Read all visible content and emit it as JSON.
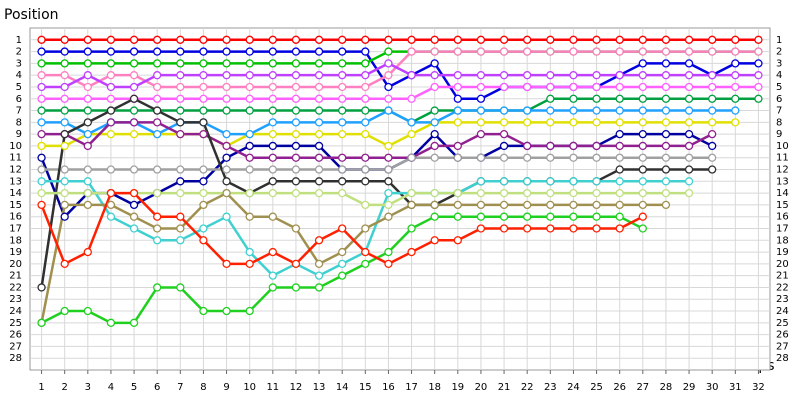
{
  "chart_data": {
    "type": "line",
    "title": "Position",
    "x_label": "Laps",
    "y_label": "Position",
    "x": [
      1,
      2,
      3,
      4,
      5,
      6,
      7,
      8,
      9,
      10,
      11,
      12,
      13,
      14,
      15,
      16,
      17,
      18,
      19,
      20,
      21,
      22,
      23,
      24,
      25,
      26,
      27,
      28,
      29,
      30,
      31,
      32
    ],
    "xlim": [
      0.5,
      32.5
    ],
    "xticks": [
      1,
      2,
      3,
      4,
      5,
      6,
      7,
      8,
      9,
      10,
      11,
      12,
      13,
      14,
      15,
      16,
      17,
      18,
      19,
      20,
      21,
      22,
      23,
      24,
      25,
      26,
      27,
      28,
      29,
      30,
      31,
      32
    ],
    "ylim": [
      29,
      0
    ],
    "yticks": [
      1,
      2,
      3,
      4,
      5,
      6,
      7,
      8,
      9,
      10,
      11,
      12,
      13,
      14,
      15,
      16,
      17,
      18,
      19,
      20,
      21,
      22,
      23,
      24,
      25,
      26,
      27,
      28
    ],
    "grid": true,
    "series": [
      {
        "color": "#ff0000",
        "values": [
          1,
          1,
          1,
          1,
          1,
          1,
          1,
          1,
          1,
          1,
          1,
          1,
          1,
          1,
          1,
          1,
          1,
          1,
          1,
          1,
          1,
          1,
          1,
          1,
          1,
          1,
          1,
          1,
          1,
          1,
          1,
          1
        ]
      },
      {
        "color": "#0000e0",
        "values": [
          2,
          2,
          2,
          2,
          2,
          2,
          2,
          2,
          2,
          2,
          2,
          2,
          2,
          2,
          2,
          5,
          4,
          3,
          6,
          6,
          5,
          5,
          5,
          5,
          5,
          4,
          3,
          3,
          3,
          4,
          3,
          3
        ]
      },
      {
        "color": "#00c000",
        "values": [
          3,
          3,
          3,
          3,
          3,
          3,
          3,
          3,
          3,
          3,
          3,
          3,
          3,
          3,
          3,
          2,
          2,
          2,
          2,
          2,
          2,
          2,
          2,
          2,
          2,
          2,
          2,
          2,
          2,
          2,
          2,
          2
        ]
      },
      {
        "color": "#ff80c0",
        "values": [
          4,
          4,
          5,
          4,
          4,
          5,
          5,
          5,
          5,
          5,
          5,
          5,
          5,
          5,
          5,
          4,
          2,
          2,
          2,
          2,
          2,
          2,
          2,
          2,
          2,
          2,
          2,
          2,
          2,
          2,
          2,
          2
        ]
      },
      {
        "color": "#c040ff",
        "values": [
          5,
          5,
          4,
          5,
          5,
          4,
          4,
          4,
          4,
          4,
          4,
          4,
          4,
          4,
          4,
          3,
          4,
          4,
          4,
          4,
          4,
          4,
          4,
          4,
          4,
          4,
          4,
          4,
          4,
          4,
          4,
          4
        ]
      },
      {
        "color": "#ff60ff",
        "values": [
          6,
          6,
          6,
          6,
          6,
          6,
          6,
          6,
          6,
          6,
          6,
          6,
          6,
          6,
          6,
          6,
          6,
          5,
          5,
          5,
          5,
          5,
          5,
          5,
          5,
          5,
          5,
          5,
          5,
          5,
          5,
          5
        ]
      },
      {
        "color": "#00a040",
        "values": [
          7,
          7,
          7,
          7,
          7,
          7,
          7,
          7,
          7,
          7,
          7,
          7,
          7,
          7,
          7,
          7,
          8,
          7,
          7,
          7,
          7,
          7,
          6,
          6,
          6,
          6,
          6,
          6,
          6,
          6,
          6,
          6
        ]
      },
      {
        "color": "#e0e000",
        "values": [
          10,
          10,
          9,
          9,
          9,
          9,
          9,
          9,
          10,
          9,
          9,
          9,
          9,
          9,
          9,
          10,
          9,
          8,
          8,
          8,
          8,
          8,
          8,
          8,
          8,
          8,
          8,
          8,
          8,
          8,
          8,
          null
        ]
      },
      {
        "color": "#20a0ff",
        "values": [
          8,
          8,
          9,
          8,
          8,
          9,
          8,
          8,
          9,
          9,
          8,
          8,
          8,
          8,
          8,
          7,
          8,
          8,
          7,
          7,
          7,
          7,
          7,
          7,
          7,
          7,
          7,
          7,
          7,
          7,
          7,
          null
        ]
      },
      {
        "color": "#0000a0",
        "values": [
          11,
          16,
          14,
          14,
          15,
          14,
          13,
          13,
          11,
          10,
          10,
          10,
          10,
          12,
          12,
          12,
          11,
          9,
          11,
          11,
          10,
          10,
          10,
          10,
          10,
          9,
          9,
          9,
          9,
          10,
          null,
          null
        ]
      },
      {
        "color": "#902090",
        "values": [
          9,
          9,
          10,
          8,
          8,
          8,
          9,
          9,
          10,
          11,
          11,
          11,
          11,
          11,
          11,
          11,
          11,
          10,
          10,
          9,
          9,
          10,
          10,
          10,
          10,
          10,
          10,
          10,
          10,
          9,
          null,
          null
        ]
      },
      {
        "color": "#a0a0a0",
        "values": [
          12,
          12,
          12,
          12,
          12,
          12,
          12,
          12,
          12,
          12,
          12,
          12,
          12,
          12,
          12,
          12,
          11,
          11,
          11,
          11,
          11,
          11,
          11,
          11,
          11,
          11,
          11,
          11,
          11,
          11,
          null,
          null
        ]
      },
      {
        "color": "#303030",
        "values": [
          22,
          9,
          8,
          7,
          6,
          7,
          8,
          8,
          13,
          14,
          13,
          13,
          13,
          13,
          13,
          13,
          15,
          15,
          14,
          13,
          13,
          13,
          13,
          13,
          13,
          12,
          12,
          12,
          12,
          12,
          null,
          null
        ]
      },
      {
        "color": "#40d0d0",
        "values": [
          13,
          13,
          13,
          16,
          17,
          18,
          18,
          17,
          16,
          19,
          21,
          20,
          21,
          20,
          19,
          14,
          14,
          14,
          14,
          13,
          13,
          13,
          13,
          13,
          13,
          13,
          13,
          13,
          13,
          null,
          null,
          null
        ]
      },
      {
        "color": "#c0e080",
        "values": [
          14,
          14,
          14,
          14,
          14,
          14,
          14,
          14,
          14,
          14,
          14,
          14,
          14,
          14,
          15,
          15,
          14,
          14,
          14,
          14,
          14,
          14,
          14,
          14,
          14,
          14,
          14,
          14,
          14,
          null,
          null,
          null
        ]
      },
      {
        "color": "#a09050",
        "values": [
          25,
          15,
          15,
          15,
          16,
          17,
          17,
          15,
          14,
          16,
          16,
          17,
          20,
          19,
          17,
          16,
          15,
          15,
          15,
          15,
          15,
          15,
          15,
          15,
          15,
          15,
          15,
          15,
          null,
          null,
          null,
          null
        ]
      },
      {
        "color": "#20d020",
        "values": [
          25,
          24,
          24,
          25,
          25,
          22,
          22,
          24,
          24,
          24,
          22,
          22,
          22,
          21,
          20,
          19,
          17,
          16,
          16,
          16,
          16,
          16,
          16,
          16,
          16,
          16,
          17,
          null,
          null,
          null,
          null,
          null
        ]
      },
      {
        "color": "#ff2000",
        "values": [
          15,
          20,
          19,
          14,
          14,
          16,
          16,
          18,
          20,
          20,
          19,
          20,
          18,
          17,
          19,
          20,
          19,
          18,
          18,
          17,
          17,
          17,
          17,
          17,
          17,
          17,
          16,
          null,
          null,
          null,
          null,
          null
        ]
      }
    ]
  }
}
